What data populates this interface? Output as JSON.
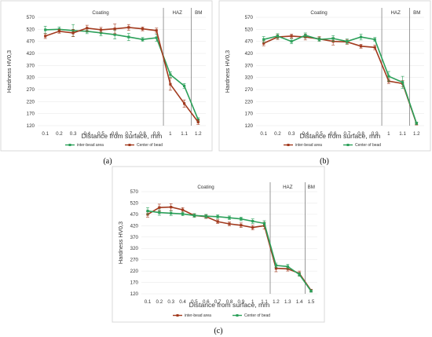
{
  "chart_data": [
    {
      "type": "line",
      "panel_label": "(a)",
      "title": "",
      "xlabel": "Distance from surface, mm",
      "ylabel": "Hardness HV0,3",
      "ylim": [
        120,
        570
      ],
      "yticks": [
        120,
        170,
        220,
        270,
        320,
        370,
        420,
        470,
        520,
        570
      ],
      "x": [
        0.1,
        0.2,
        0.3,
        0.4,
        0.5,
        0.6,
        0.7,
        0.8,
        0.9,
        1,
        1.1,
        1.2
      ],
      "x_tick_labels": [
        "0.1",
        "0.2",
        "0.3",
        "0.4",
        "0.5",
        "0.6",
        "0.7",
        "0.8",
        "0.9",
        "1",
        "1.1",
        "1.2"
      ],
      "grid": true,
      "legend_position": "bottom",
      "zones": [
        {
          "label": "Coating",
          "from": 0.1,
          "to": 0.95
        },
        {
          "label": "HAZ",
          "from": 0.95,
          "to": 1.15
        },
        {
          "label": "BM",
          "from": 1.15,
          "to": 1.2
        }
      ],
      "series": [
        {
          "name": "inter-bead area",
          "color": "#2ca05a",
          "values": [
            518,
            520,
            515,
            512,
            505,
            498,
            488,
            478,
            485,
            332,
            285,
            145
          ],
          "errors": [
            15,
            10,
            25,
            10,
            12,
            18,
            15,
            8,
            15,
            12,
            10,
            8
          ]
        },
        {
          "name": "Center of bead",
          "color": "#a23a1e",
          "values": [
            492,
            512,
            505,
            525,
            518,
            522,
            528,
            522,
            515,
            292,
            212,
            135
          ],
          "errors": [
            10,
            8,
            15,
            12,
            10,
            20,
            12,
            8,
            10,
            25,
            15,
            10
          ]
        }
      ]
    },
    {
      "type": "line",
      "panel_label": "(b)",
      "title": "",
      "xlabel": "Distance from surface, mm",
      "ylabel": "Hardness HV0,3",
      "ylim": [
        120,
        570
      ],
      "yticks": [
        120,
        170,
        220,
        270,
        320,
        370,
        420,
        470,
        520,
        570
      ],
      "x": [
        0.1,
        0.2,
        0.3,
        0.4,
        0.5,
        0.6,
        0.7,
        0.8,
        0.9,
        1,
        1.1,
        1.2
      ],
      "x_tick_labels": [
        "0.1",
        "0.2",
        "0.3",
        "0.4",
        "0.5",
        "0.6",
        "0.7",
        "0.8",
        "0.9",
        "1",
        "1.1",
        "1.2"
      ],
      "grid": true,
      "legend_position": "bottom",
      "zones": [
        {
          "label": "Coating",
          "from": 0.1,
          "to": 0.95
        },
        {
          "label": "HAZ",
          "from": 0.95,
          "to": 1.15
        },
        {
          "label": "BM",
          "from": 1.15,
          "to": 1.2
        }
      ],
      "series": [
        {
          "name": "inter-bead area",
          "color": "#a23a1e",
          "values": [
            462,
            488,
            492,
            488,
            480,
            470,
            468,
            450,
            445,
            305,
            295,
            128
          ],
          "errors": [
            10,
            10,
            8,
            12,
            10,
            15,
            10,
            8,
            10,
            10,
            12,
            5
          ]
        },
        {
          "name": "Center of bead",
          "color": "#2ca05a",
          "values": [
            478,
            492,
            470,
            495,
            478,
            482,
            470,
            488,
            478,
            325,
            300,
            130
          ],
          "errors": [
            12,
            10,
            10,
            10,
            8,
            12,
            10,
            12,
            8,
            20,
            25,
            5
          ]
        }
      ]
    },
    {
      "type": "line",
      "panel_label": "(c)",
      "title": "",
      "xlabel": "Distance from surface, mm",
      "ylabel": "Hardness HV0,3",
      "ylim": [
        120,
        570
      ],
      "yticks": [
        120,
        170,
        220,
        270,
        320,
        370,
        420,
        470,
        520,
        570
      ],
      "x": [
        0.1,
        0.2,
        0.3,
        0.4,
        0.5,
        0.6,
        0.7,
        0.8,
        0.9,
        1,
        1.1,
        1.2,
        1.3,
        1.4,
        1.5
      ],
      "x_tick_labels": [
        "0.1",
        "0.2",
        "0.3",
        "0.4",
        "0.5",
        "0.6",
        "0.7",
        "0.8",
        "0.9",
        "1",
        "1.1",
        "1.2",
        "1.3",
        "1.4",
        "1.5"
      ],
      "grid": true,
      "legend_position": "bottom",
      "zones": [
        {
          "label": "Coating",
          "from": 0.1,
          "to": 1.15
        },
        {
          "label": "HAZ",
          "from": 1.15,
          "to": 1.45
        },
        {
          "label": "BM",
          "from": 1.45,
          "to": 1.5
        }
      ],
      "series": [
        {
          "name": "inter-bead area",
          "color": "#a23a1e",
          "values": [
            470,
            500,
            502,
            490,
            465,
            460,
            438,
            428,
            422,
            412,
            420,
            232,
            230,
            210,
            135
          ],
          "errors": [
            12,
            15,
            15,
            10,
            8,
            8,
            8,
            8,
            10,
            10,
            15,
            15,
            10,
            10,
            5
          ]
        },
        {
          "name": "Center of bead",
          "color": "#2ca05a",
          "values": [
            485,
            478,
            475,
            472,
            465,
            462,
            460,
            455,
            450,
            440,
            430,
            245,
            240,
            205,
            132
          ],
          "errors": [
            15,
            12,
            10,
            8,
            8,
            8,
            8,
            8,
            8,
            10,
            12,
            10,
            10,
            8,
            5
          ]
        }
      ]
    }
  ]
}
